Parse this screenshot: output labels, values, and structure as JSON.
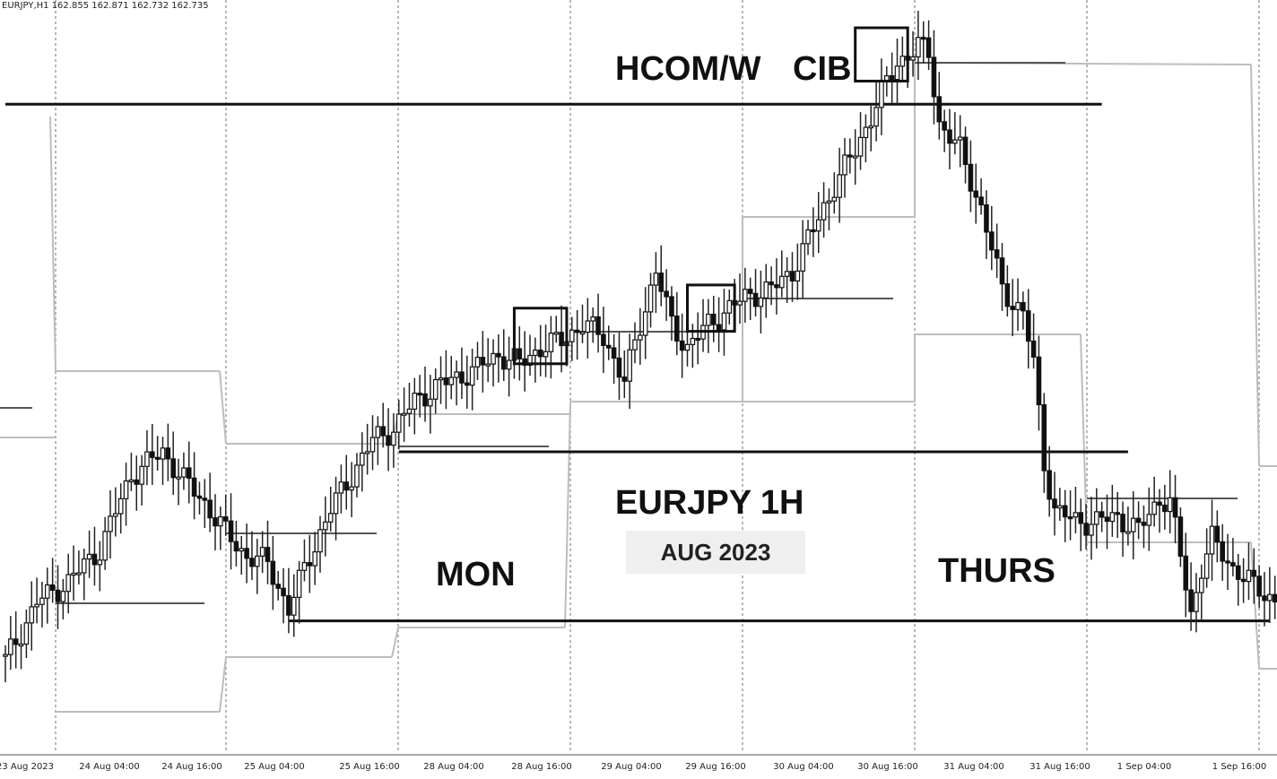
{
  "ticker_line": "EURJPY,H1  162.855 162.871 162.732 162.735",
  "annotations": {
    "hcom": "HCOM/W",
    "cib": "CIB",
    "title": "EURJPY 1H",
    "date": "AUG 2023",
    "mon": "MON",
    "thurs": "THURS"
  },
  "chart_data": {
    "type": "candlestick",
    "symbol": "EURJPY",
    "timeframe": "H1",
    "x_tick_labels": [
      "23 Aug 2023",
      "24 Aug 04:00",
      "24 Aug 16:00",
      "25 Aug 04:00",
      "25 Aug 16:00",
      "28 Aug 04:00",
      "28 Aug 16:00",
      "29 Aug 04:00",
      "29 Aug 16:00",
      "30 Aug 04:00",
      "30 Aug 16:00",
      "31 Aug 04:00",
      "31 Aug 16:00",
      "1 Sep 04:00",
      "1 Sep 16:00"
    ],
    "ylim": [
      156.7,
      159.95
    ],
    "grid": true,
    "key_levels": [
      {
        "price": 159.5,
        "from_index": 0,
        "to_index": 209
      },
      {
        "price": 158.0,
        "from_index": 75,
        "to_index": 214
      },
      {
        "price": 157.27,
        "from_index": 54,
        "to_index": 241
      }
    ],
    "boxes": [
      {
        "from_index": 97,
        "to_index": 107,
        "low": 158.38,
        "high": 158.62
      },
      {
        "from_index": 130,
        "to_index": 139,
        "low": 158.52,
        "high": 158.72
      },
      {
        "from_index": 162,
        "to_index": 172,
        "low": 159.6,
        "high": 159.83
      }
    ],
    "close_path": [
      [
        0,
        157.1
      ],
      [
        6,
        157.35
      ],
      [
        12,
        157.44
      ],
      [
        18,
        157.58
      ],
      [
        24,
        157.9
      ],
      [
        30,
        158.0
      ],
      [
        34,
        157.88
      ],
      [
        38,
        157.78
      ],
      [
        42,
        157.65
      ],
      [
        46,
        157.55
      ],
      [
        50,
        157.52
      ],
      [
        54,
        157.32
      ],
      [
        58,
        157.55
      ],
      [
        62,
        157.75
      ],
      [
        66,
        157.9
      ],
      [
        70,
        158.05
      ],
      [
        74,
        158.1
      ],
      [
        78,
        158.22
      ],
      [
        82,
        158.28
      ],
      [
        86,
        158.32
      ],
      [
        90,
        158.36
      ],
      [
        94,
        158.42
      ],
      [
        98,
        158.38
      ],
      [
        102,
        158.45
      ],
      [
        106,
        158.48
      ],
      [
        110,
        158.55
      ],
      [
        114,
        158.5
      ],
      [
        118,
        158.3
      ],
      [
        121,
        158.55
      ],
      [
        124,
        158.78
      ],
      [
        127,
        158.55
      ],
      [
        130,
        158.45
      ],
      [
        134,
        158.55
      ],
      [
        138,
        158.62
      ],
      [
        142,
        158.68
      ],
      [
        146,
        158.7
      ],
      [
        150,
        158.78
      ],
      [
        154,
        158.96
      ],
      [
        158,
        159.15
      ],
      [
        162,
        159.3
      ],
      [
        166,
        159.5
      ],
      [
        170,
        159.68
      ],
      [
        174,
        159.75
      ],
      [
        176,
        159.72
      ],
      [
        178,
        159.42
      ],
      [
        182,
        159.3
      ],
      [
        186,
        159.05
      ],
      [
        190,
        158.7
      ],
      [
        194,
        158.6
      ],
      [
        196,
        158.38
      ],
      [
        198,
        157.95
      ],
      [
        200,
        157.75
      ],
      [
        204,
        157.7
      ],
      [
        208,
        157.7
      ],
      [
        212,
        157.72
      ],
      [
        216,
        157.66
      ],
      [
        220,
        157.8
      ],
      [
        222,
        157.78
      ],
      [
        224,
        157.55
      ],
      [
        226,
        157.3
      ],
      [
        228,
        157.5
      ],
      [
        230,
        157.62
      ],
      [
        234,
        157.5
      ],
      [
        238,
        157.42
      ],
      [
        242,
        157.36
      ]
    ],
    "ohlc_source": "close_path interpolated"
  }
}
